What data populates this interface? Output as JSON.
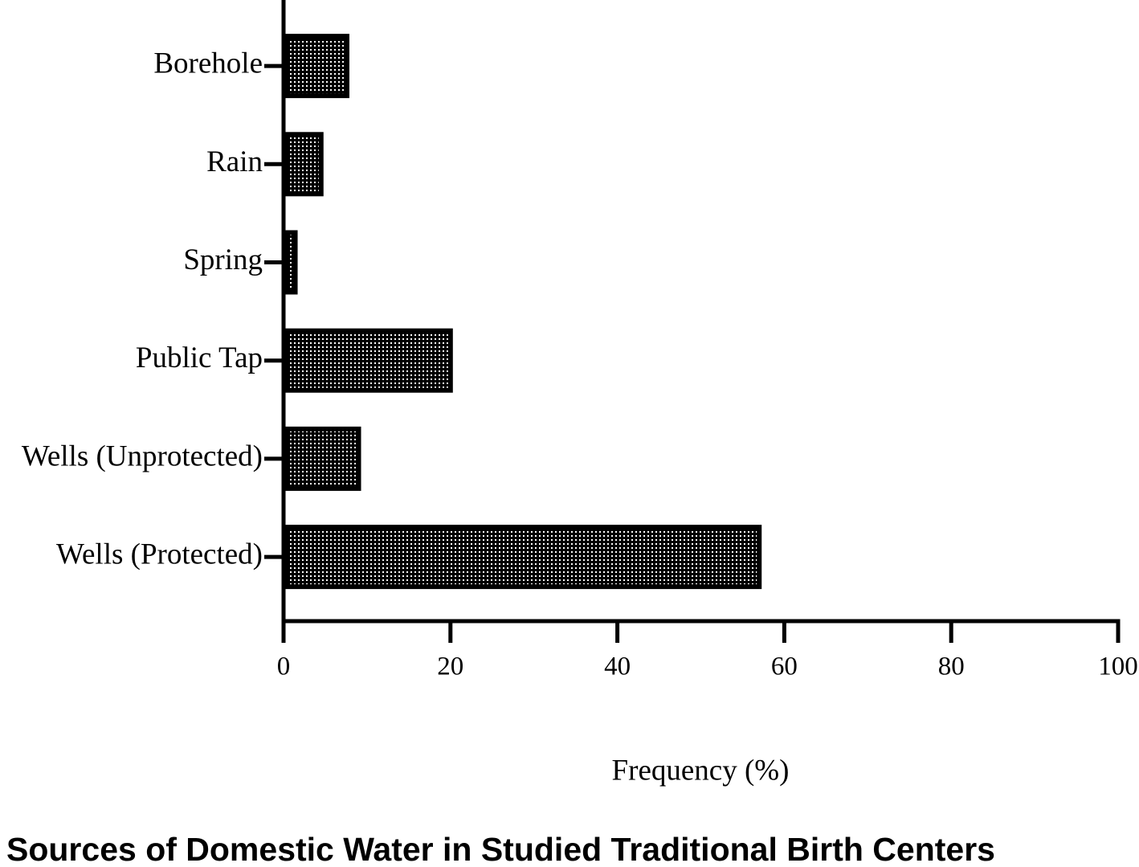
{
  "chart_data": {
    "type": "bar",
    "orientation": "horizontal",
    "title": "Sources of Domestic Water in Studied Traditional Birth Centers",
    "x_label": "Frequency (%)",
    "categories": [
      "Borehole",
      "Rain",
      "Spring",
      "Public Tap",
      "Wells (Unprotected)",
      "Wells (Protected)"
    ],
    "values": [
      7.6,
      4.5,
      1.4,
      20,
      9,
      57
    ],
    "color": "#000000",
    "xlim": [
      0,
      100
    ],
    "xticks": [
      0,
      20,
      40,
      60,
      80,
      100
    ],
    "grid": false
  }
}
